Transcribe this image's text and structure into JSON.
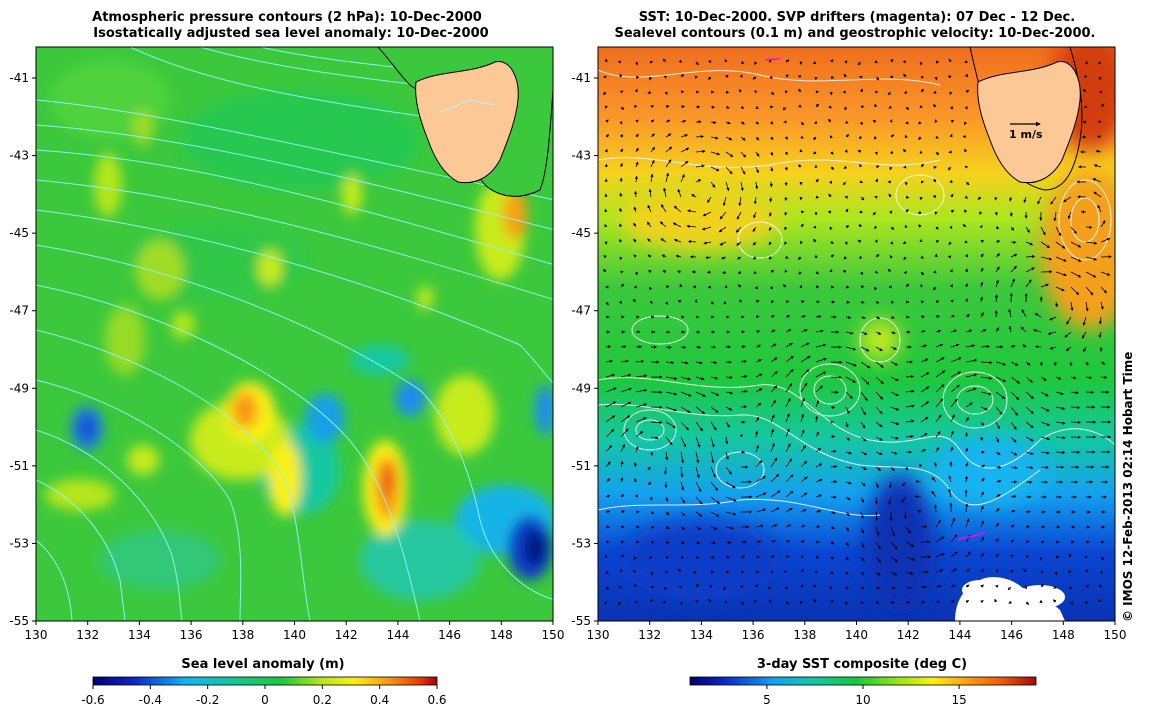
{
  "left_panel": {
    "title_line1": "Atmospheric pressure contours (2 hPa): 10-Dec-2000",
    "title_line2": "Isostatically adjusted sea level anomaly: 10-Dec-2000",
    "colorbar_label": "Sea level anomaly (m)",
    "colorbar_ticks": [
      "-0.6",
      "-0.4",
      "-0.2",
      "0",
      "0.2",
      "0.4",
      "0.6"
    ],
    "colorbar_range": [
      -0.6,
      0.6
    ]
  },
  "right_panel": {
    "title_line1": "SST: 10-Dec-2000. SVP drifters (magenta): 07 Dec - 12 Dec.",
    "title_line2": "Sealevel contours (0.1 m) and geostrophic velocity: 10-Dec-2000.",
    "colorbar_label": "3-day SST composite (deg C)",
    "colorbar_ticks": [
      "5",
      "10",
      "15"
    ],
    "colorbar_range": [
      1,
      19
    ],
    "scale_arrow_label": "1 m/s"
  },
  "axes": {
    "lon_ticks": [
      "130",
      "132",
      "134",
      "136",
      "138",
      "140",
      "142",
      "144",
      "146",
      "148",
      "150"
    ],
    "lat_ticks": [
      "-41",
      "-43",
      "-45",
      "-47",
      "-49",
      "-51",
      "-53",
      "-55"
    ],
    "lon_range": [
      130,
      150
    ],
    "lat_range": [
      -55,
      -40.2
    ]
  },
  "credit": "© IMOS 12-Feb-2013 02:14 Hobart Time",
  "colors": {
    "land": "#fcc896",
    "contour_left": "#8ff5f5",
    "contour_right": "#ffffff",
    "drifter": "#ff00ff"
  }
}
